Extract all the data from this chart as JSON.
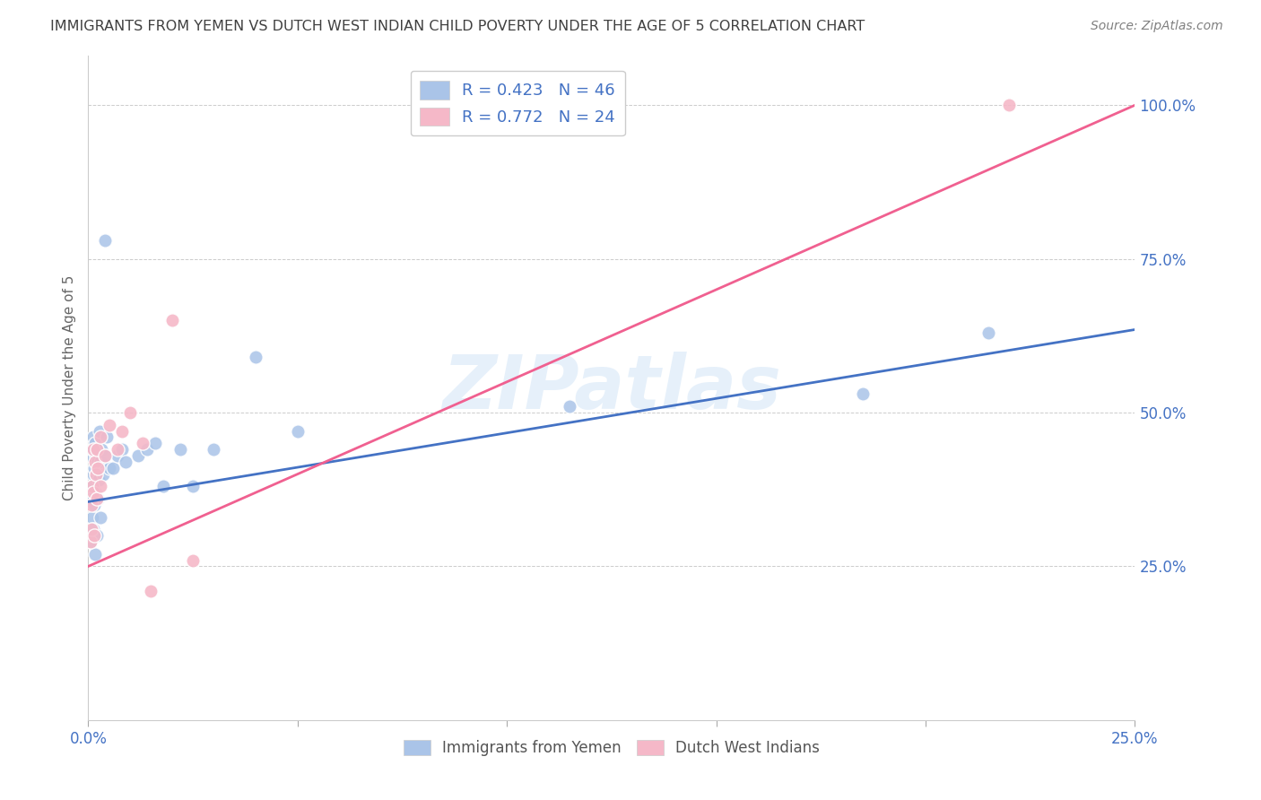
{
  "title": "IMMIGRANTS FROM YEMEN VS DUTCH WEST INDIAN CHILD POVERTY UNDER THE AGE OF 5 CORRELATION CHART",
  "source": "Source: ZipAtlas.com",
  "ylabel": "Child Poverty Under the Age of 5",
  "xlim": [
    0.0,
    0.25
  ],
  "ylim": [
    0.0,
    1.08
  ],
  "yticks": [
    0.25,
    0.5,
    0.75,
    1.0
  ],
  "ytick_labels": [
    "25.0%",
    "50.0%",
    "75.0%",
    "100.0%"
  ],
  "background_color": "#ffffff",
  "grid_color": "#cccccc",
  "watermark_text": "ZIPatlas",
  "legend_r1": "R = 0.423",
  "legend_n1": "N = 46",
  "legend_r2": "R = 0.772",
  "legend_n2": "N = 24",
  "blue_scatter_color": "#aac4e8",
  "pink_scatter_color": "#f5b8c8",
  "blue_line_color": "#4472c4",
  "pink_line_color": "#f06090",
  "axis_label_color": "#4472c4",
  "title_color": "#404040",
  "source_color": "#808080",
  "label1": "Immigrants from Yemen",
  "label2": "Dutch West Indians",
  "yemen_x": [
    0.0005,
    0.0006,
    0.0007,
    0.0008,
    0.0009,
    0.001,
    0.001,
    0.0011,
    0.0012,
    0.0013,
    0.0014,
    0.0015,
    0.0016,
    0.0016,
    0.0017,
    0.0018,
    0.002,
    0.002,
    0.0022,
    0.0023,
    0.0025,
    0.0026,
    0.003,
    0.003,
    0.0032,
    0.0035,
    0.004,
    0.004,
    0.0045,
    0.005,
    0.006,
    0.007,
    0.008,
    0.009,
    0.012,
    0.014,
    0.016,
    0.018,
    0.022,
    0.025,
    0.03,
    0.04,
    0.05,
    0.115,
    0.185,
    0.215
  ],
  "yemen_y": [
    0.29,
    0.43,
    0.36,
    0.3,
    0.44,
    0.38,
    0.33,
    0.4,
    0.46,
    0.31,
    0.35,
    0.41,
    0.27,
    0.45,
    0.37,
    0.43,
    0.3,
    0.44,
    0.36,
    0.42,
    0.39,
    0.47,
    0.33,
    0.42,
    0.44,
    0.4,
    0.78,
    0.43,
    0.46,
    0.41,
    0.41,
    0.43,
    0.44,
    0.42,
    0.43,
    0.44,
    0.45,
    0.38,
    0.44,
    0.38,
    0.44,
    0.59,
    0.47,
    0.51,
    0.53,
    0.63
  ],
  "dutch_x": [
    0.0006,
    0.0007,
    0.0008,
    0.001,
    0.0012,
    0.0013,
    0.0015,
    0.0016,
    0.0018,
    0.002,
    0.002,
    0.0022,
    0.003,
    0.003,
    0.004,
    0.005,
    0.007,
    0.008,
    0.01,
    0.013,
    0.015,
    0.02,
    0.025,
    0.22
  ],
  "dutch_y": [
    0.29,
    0.35,
    0.31,
    0.38,
    0.44,
    0.37,
    0.3,
    0.42,
    0.4,
    0.36,
    0.44,
    0.41,
    0.38,
    0.46,
    0.43,
    0.48,
    0.44,
    0.47,
    0.5,
    0.45,
    0.21,
    0.65,
    0.26,
    1.0
  ]
}
